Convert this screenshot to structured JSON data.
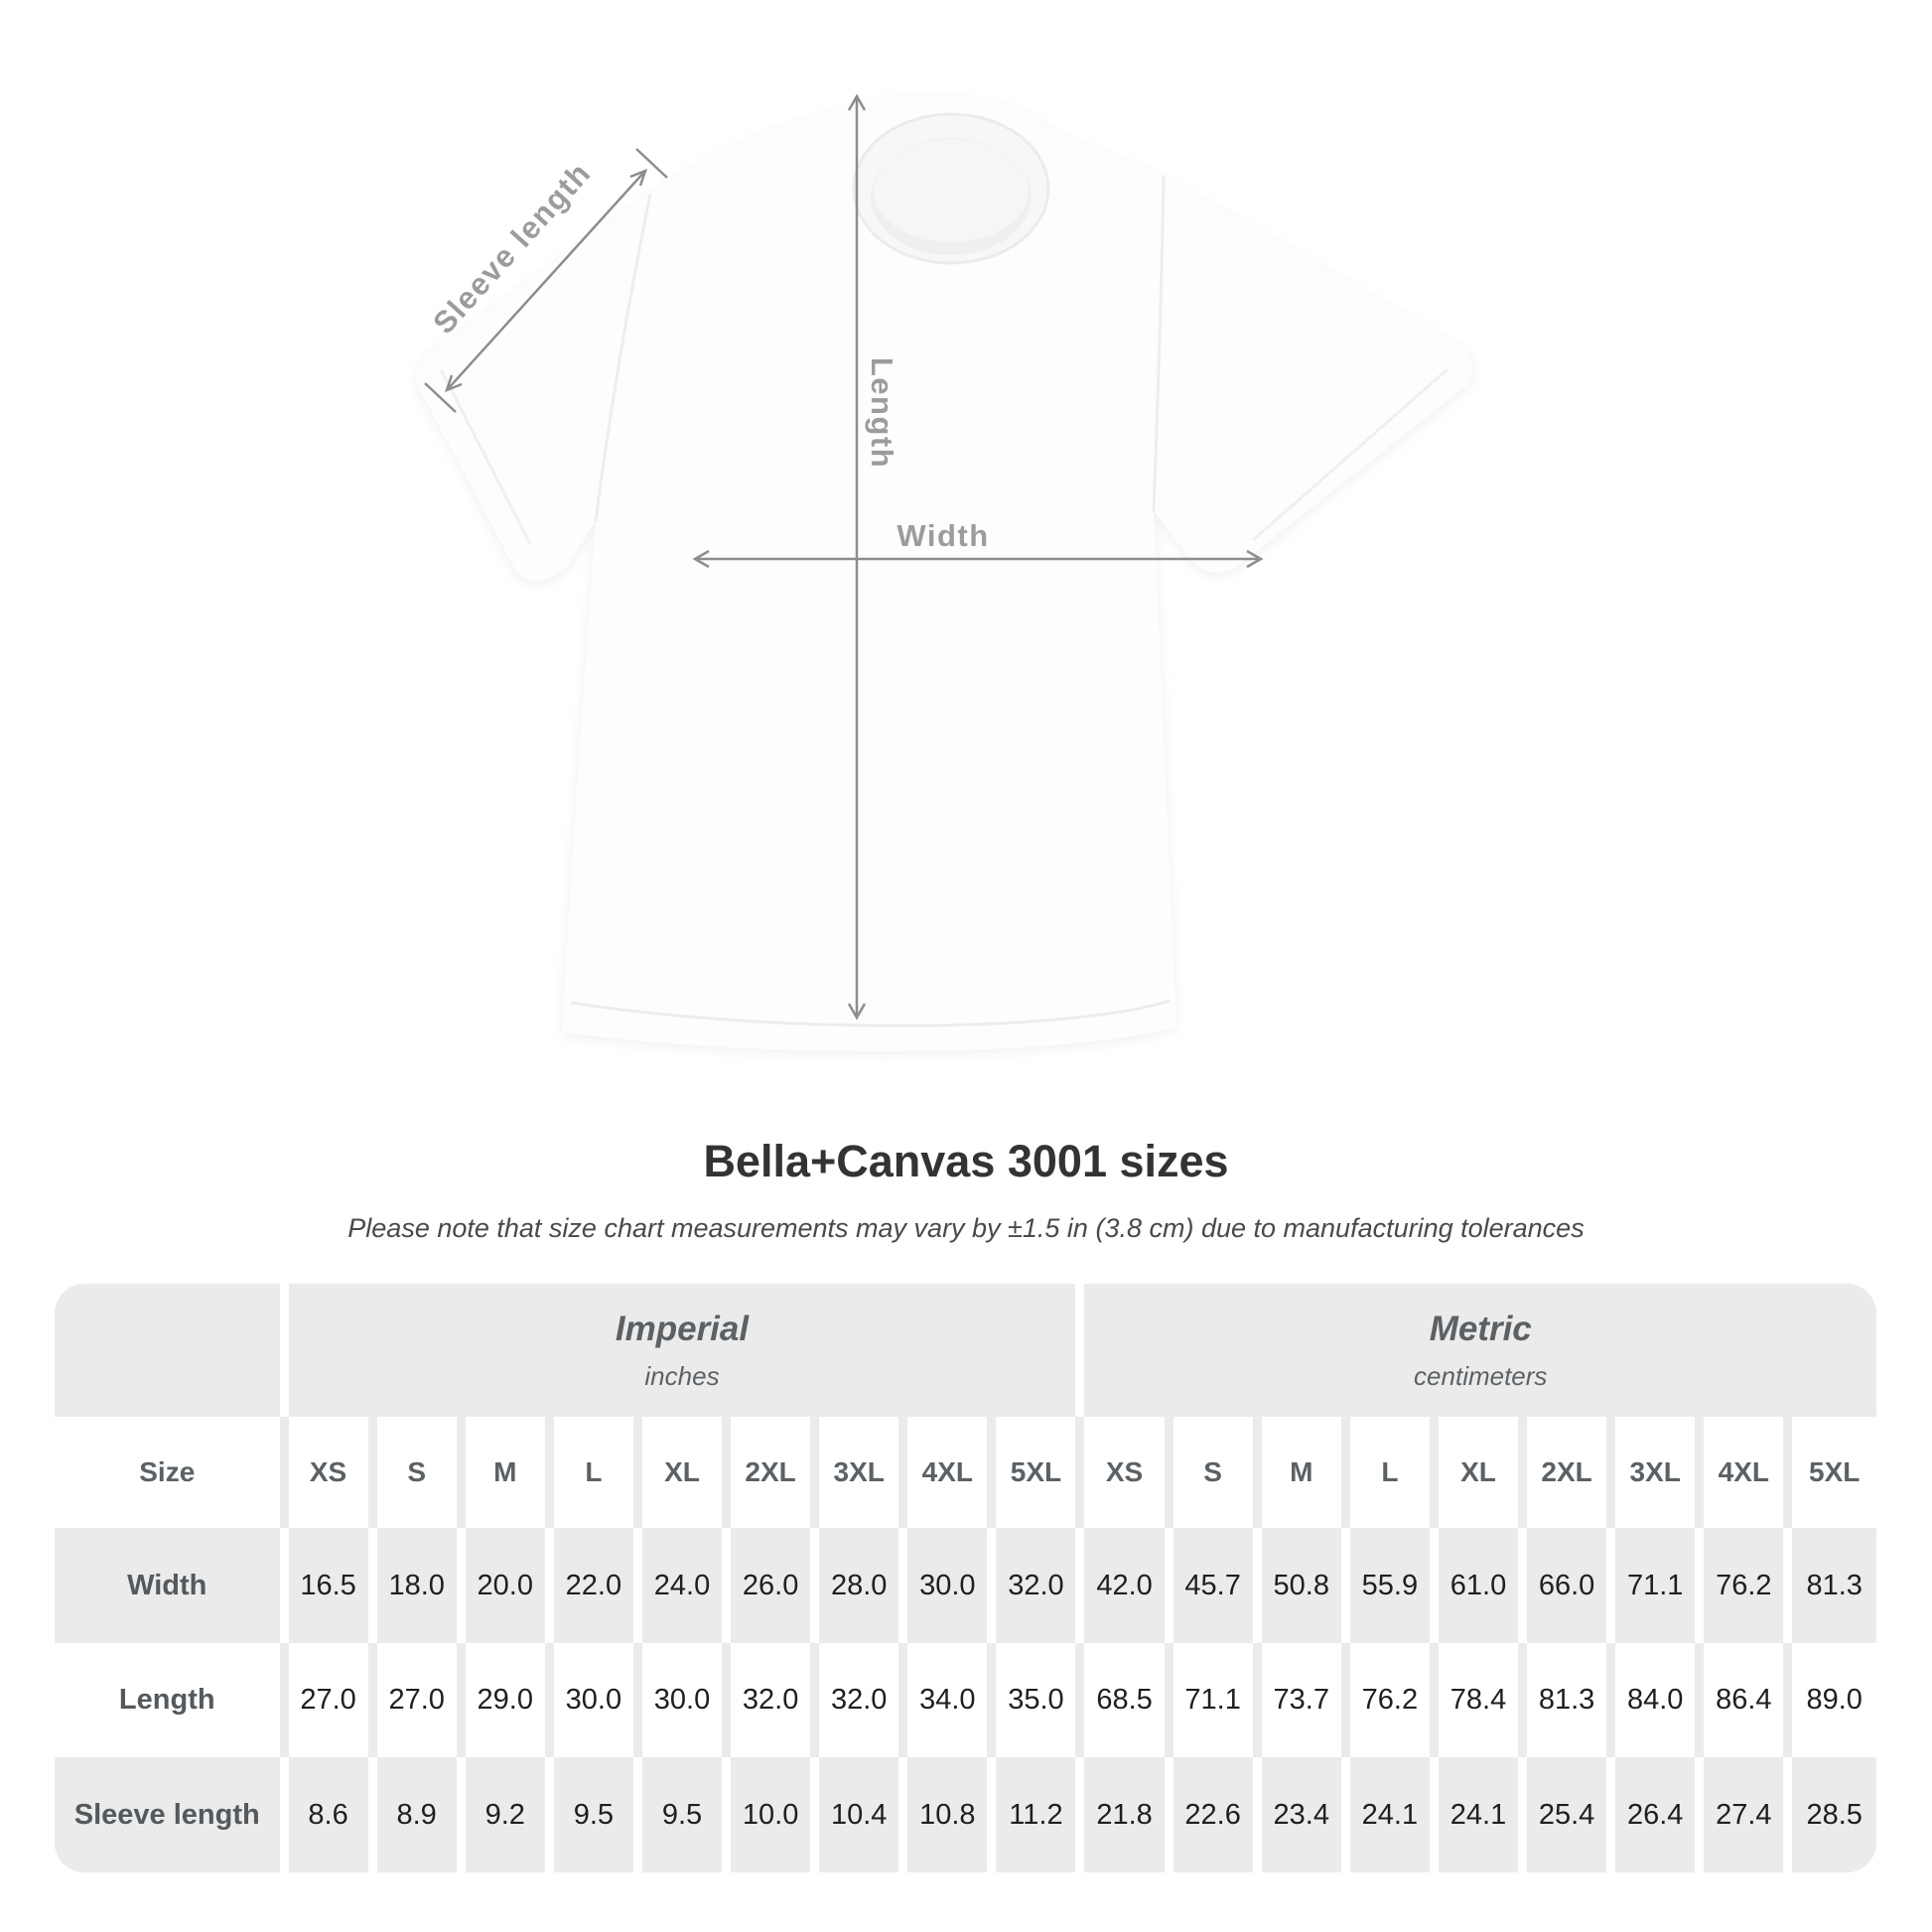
{
  "diagram": {
    "labels": {
      "sleeve": "Sleeve length",
      "length": "Length",
      "width": "Width"
    }
  },
  "title": "Bella+Canvas 3001 sizes",
  "subtitle": "Please note that size chart measurements may vary by ±1.5 in (3.8 cm) due to manufacturing tolerances",
  "table": {
    "groups": [
      {
        "label": "Imperial",
        "sublabel": "inches"
      },
      {
        "label": "Metric",
        "sublabel": "centimeters"
      }
    ],
    "size_header": "Size",
    "size_columns": [
      "XS",
      "S",
      "M",
      "L",
      "XL",
      "2XL",
      "3XL",
      "4XL",
      "5XL",
      "XS",
      "S",
      "M",
      "L",
      "XL",
      "2XL",
      "3XL",
      "4XL",
      "5XL"
    ],
    "rows": [
      {
        "label": "Width",
        "values": [
          "16.5",
          "18.0",
          "20.0",
          "22.0",
          "24.0",
          "26.0",
          "28.0",
          "30.0",
          "32.0",
          "42.0",
          "45.7",
          "50.8",
          "55.9",
          "61.0",
          "66.0",
          "71.1",
          "76.2",
          "81.3"
        ]
      },
      {
        "label": "Length",
        "values": [
          "27.0",
          "27.0",
          "29.0",
          "30.0",
          "30.0",
          "32.0",
          "32.0",
          "34.0",
          "35.0",
          "68.5",
          "71.1",
          "73.7",
          "76.2",
          "78.4",
          "81.3",
          "84.0",
          "86.4",
          "89.0"
        ]
      },
      {
        "label": "Sleeve length",
        "values": [
          "8.6",
          "8.9",
          "9.2",
          "9.5",
          "9.5",
          "10.0",
          "10.4",
          "10.8",
          "11.2",
          "21.8",
          "22.6",
          "23.4",
          "24.1",
          "24.1",
          "25.4",
          "26.4",
          "27.4",
          "28.5"
        ]
      }
    ]
  },
  "colors": {
    "table_bg": "#ebebeb",
    "header_text": "#5b6165",
    "number_text": "#1f1f1f",
    "title_text": "#333333",
    "diagram_label": "#9c9c9c",
    "arrow": "#8d8d8d"
  },
  "chart_data": {
    "type": "table",
    "title": "Bella+Canvas 3001 sizes",
    "note": "Please note that size chart measurements may vary by ±1.5 in (3.8 cm) due to manufacturing tolerances",
    "unit_groups": [
      {
        "name": "Imperial",
        "unit": "inches"
      },
      {
        "name": "Metric",
        "unit": "centimeters"
      }
    ],
    "sizes": [
      "XS",
      "S",
      "M",
      "L",
      "XL",
      "2XL",
      "3XL",
      "4XL",
      "5XL"
    ],
    "measurements": {
      "Width": {
        "imperial": [
          16.5,
          18.0,
          20.0,
          22.0,
          24.0,
          26.0,
          28.0,
          30.0,
          32.0
        ],
        "metric": [
          42.0,
          45.7,
          50.8,
          55.9,
          61.0,
          66.0,
          71.1,
          76.2,
          81.3
        ]
      },
      "Length": {
        "imperial": [
          27.0,
          27.0,
          29.0,
          30.0,
          30.0,
          32.0,
          32.0,
          34.0,
          35.0
        ],
        "metric": [
          68.5,
          71.1,
          73.7,
          76.2,
          78.4,
          81.3,
          84.0,
          86.4,
          89.0
        ]
      },
      "Sleeve length": {
        "imperial": [
          8.6,
          8.9,
          9.2,
          9.5,
          9.5,
          10.0,
          10.4,
          10.8,
          11.2
        ],
        "metric": [
          21.8,
          22.6,
          23.4,
          24.1,
          24.1,
          25.4,
          26.4,
          27.4,
          28.5
        ]
      }
    }
  }
}
